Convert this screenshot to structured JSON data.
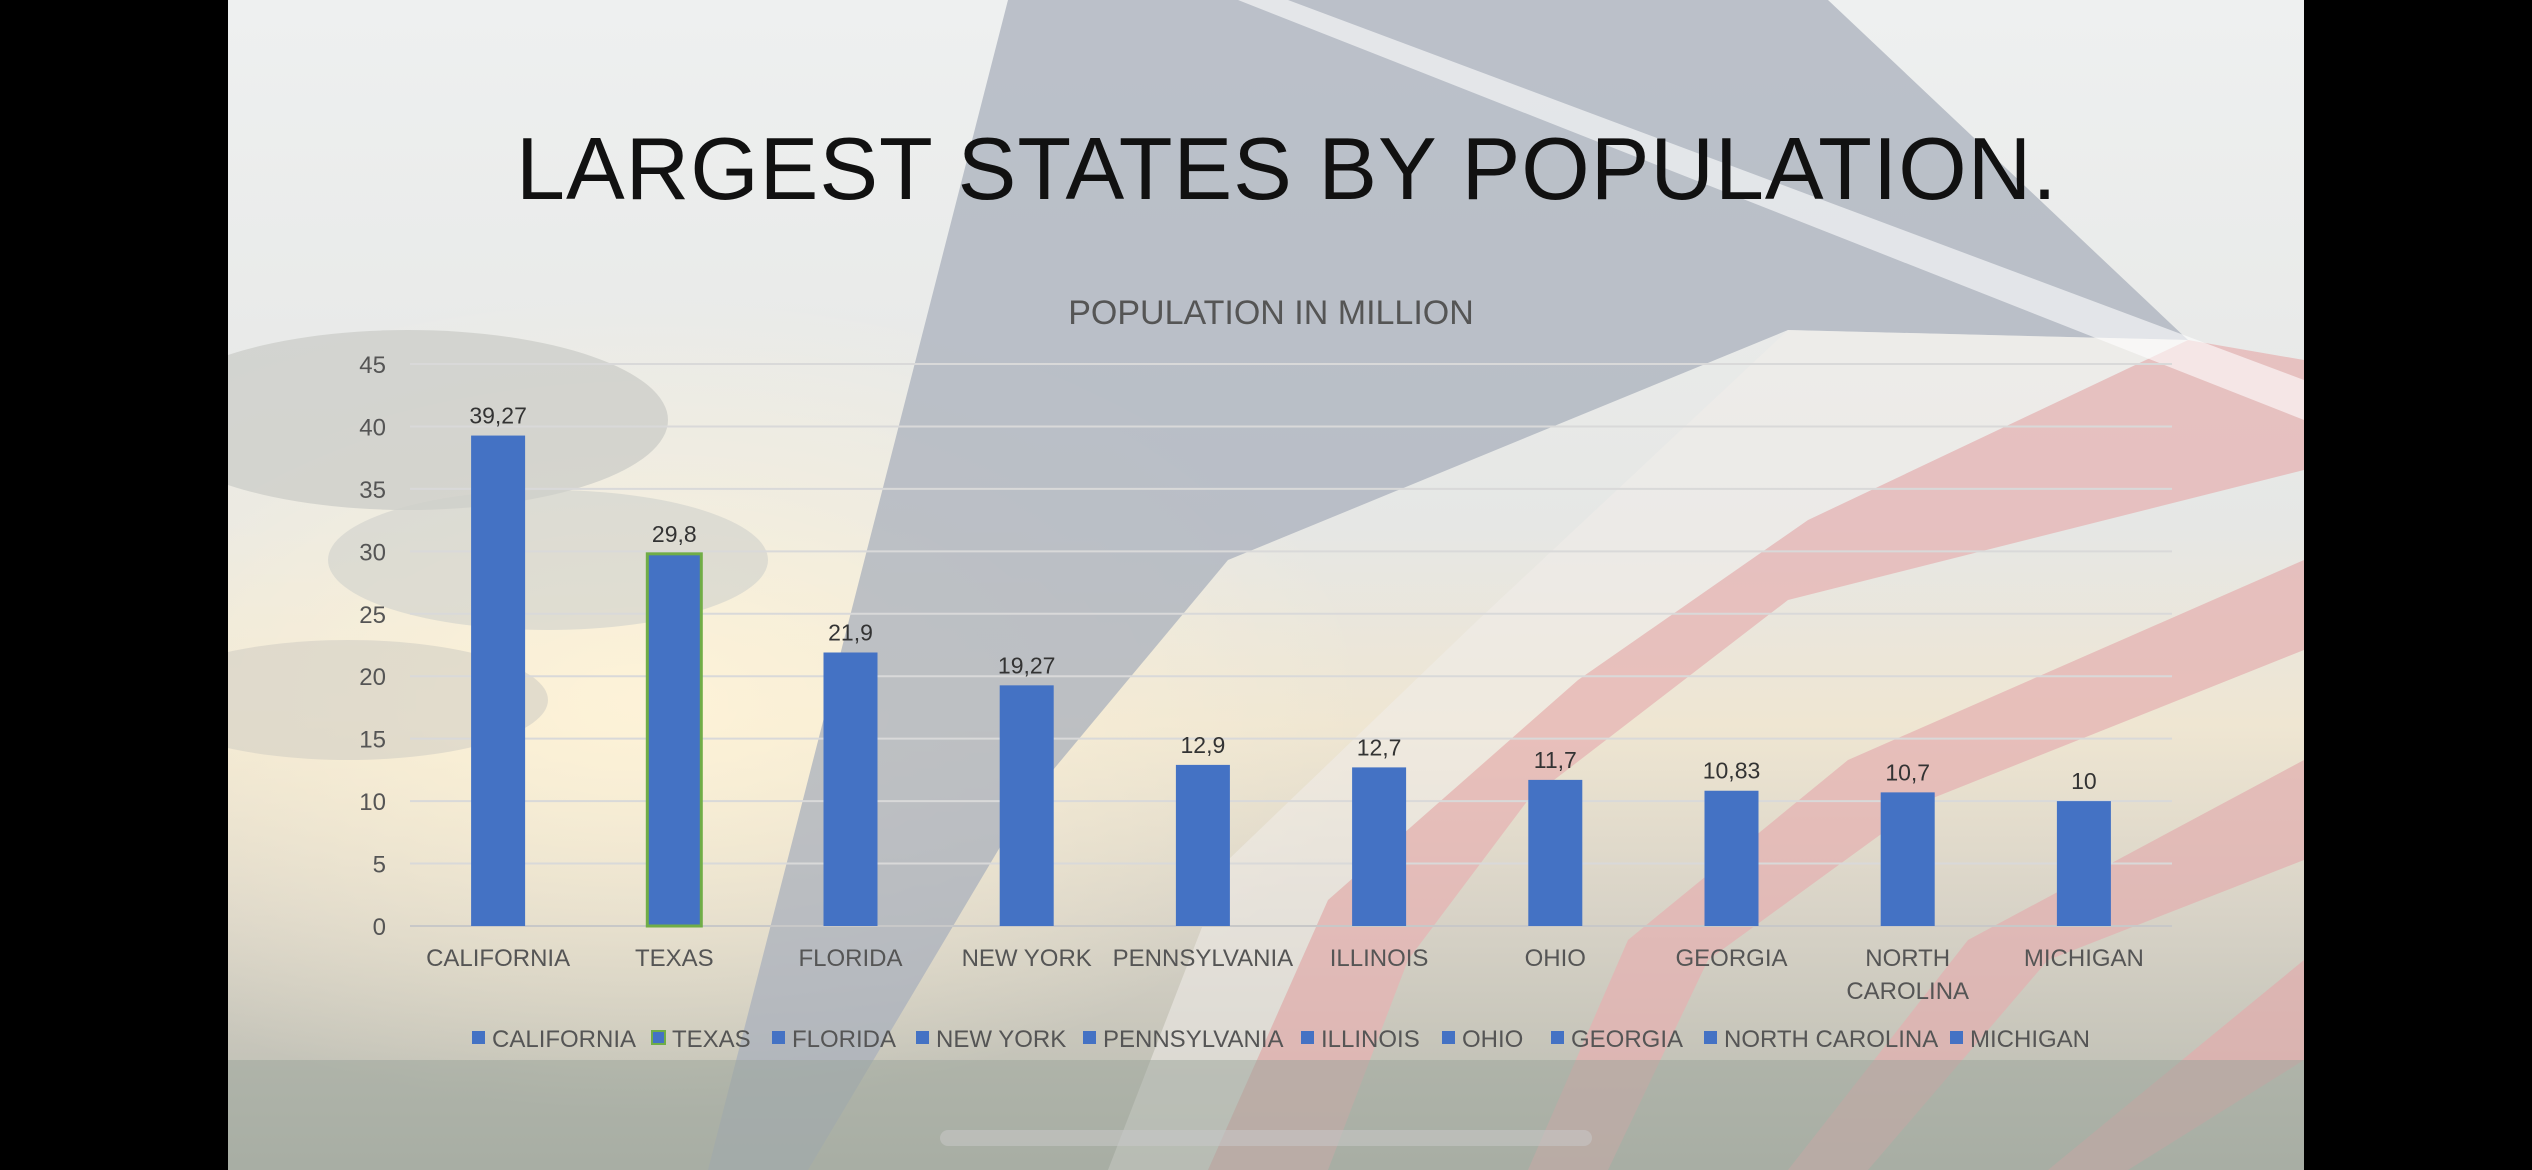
{
  "slide": {
    "title": "LARGEST STATES BY POPULATION."
  },
  "chart_data": {
    "type": "bar",
    "title": "POPULATION IN MILLION",
    "xlabel": "",
    "ylabel": "",
    "categories": [
      "CALIFORNIA",
      "TEXAS",
      "FLORIDA",
      "NEW YORK",
      "PENNSYLVANIA",
      "ILLINOIS",
      "OHIO",
      "GEORGIA",
      "NORTH CAROLINA",
      "MICHIGAN"
    ],
    "values": [
      39.27,
      29.8,
      21.9,
      19.27,
      12.9,
      12.7,
      11.7,
      10.83,
      10.7,
      10
    ],
    "data_labels": [
      "39,27",
      "29,8",
      "21,9",
      "19,27",
      "12,9",
      "12,7",
      "11,7",
      "10,83",
      "10,7",
      "10"
    ],
    "ylim": [
      0,
      45
    ],
    "y_ticks": [
      "0",
      "5",
      "10",
      "15",
      "20",
      "25",
      "30",
      "35",
      "40",
      "45"
    ],
    "grid": true,
    "legend_position": "bottom",
    "bar_color": "#4472c4",
    "highlight_border_color": "#70ad47"
  }
}
